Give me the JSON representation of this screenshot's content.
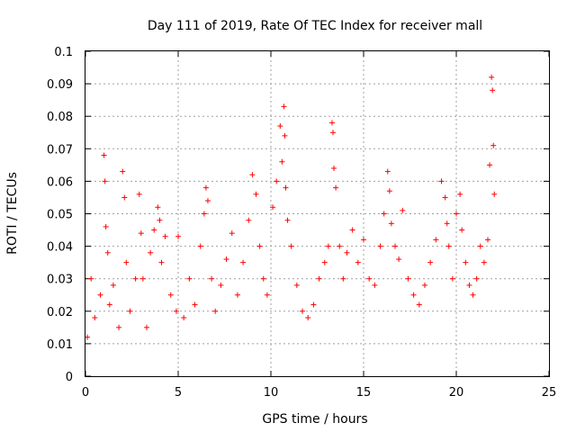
{
  "chart_data": {
    "type": "scatter",
    "title": "Day 111 of 2019, Rate Of TEC Index for receiver mall",
    "xlabel": "GPS time / hours",
    "ylabel": "ROTI / TECUs",
    "xlim": [
      0,
      25
    ],
    "ylim": [
      0,
      0.1
    ],
    "xticks": [
      "0",
      "5",
      "10",
      "15",
      "20",
      "25"
    ],
    "yticks": [
      "0",
      "0.01",
      "0.02",
      "0.03",
      "0.04",
      "0.05",
      "0.06",
      "0.07",
      "0.08",
      "0.09",
      "0.1"
    ],
    "grid": true,
    "legend": "none",
    "marker": "+",
    "color": "#ff0000",
    "series": [
      {
        "x": [
          0.1,
          0.3,
          0.5,
          0.8,
          1.0,
          1.05,
          1.1,
          1.2,
          1.3,
          1.5,
          1.8,
          2.0,
          2.1,
          2.2,
          2.4,
          2.7,
          2.9,
          3.0,
          3.1,
          3.3,
          3.5,
          3.7,
          3.9,
          4.0,
          4.1,
          4.3,
          4.6,
          4.9,
          5.0,
          5.3,
          5.6,
          5.9,
          6.2,
          6.4,
          6.5,
          6.6,
          6.8,
          7.0,
          7.3,
          7.6,
          7.9,
          8.2,
          8.5,
          8.8,
          9.0,
          9.2,
          9.4,
          9.6,
          9.8,
          10.1,
          10.3,
          10.5,
          10.6,
          10.7,
          10.75,
          10.8,
          10.9,
          11.1,
          11.4,
          11.7,
          12.0,
          12.3,
          12.6,
          12.9,
          13.1,
          13.3,
          13.35,
          13.4,
          13.5,
          13.7,
          13.9,
          14.1,
          14.4,
          14.7,
          15.0,
          15.3,
          15.6,
          15.9,
          16.1,
          16.3,
          16.4,
          16.5,
          16.7,
          16.9,
          17.1,
          17.4,
          17.7,
          18.0,
          18.3,
          18.6,
          18.9,
          19.2,
          19.4,
          19.5,
          19.6,
          19.8,
          20.0,
          20.2,
          20.3,
          20.5,
          20.7,
          20.9,
          21.1,
          21.3,
          21.5,
          21.7,
          21.8,
          21.9,
          21.95,
          22.0,
          22.05
        ],
        "y": [
          0.012,
          0.03,
          0.018,
          0.025,
          0.068,
          0.06,
          0.046,
          0.038,
          0.022,
          0.028,
          0.015,
          0.063,
          0.055,
          0.035,
          0.02,
          0.03,
          0.056,
          0.044,
          0.03,
          0.015,
          0.038,
          0.045,
          0.052,
          0.048,
          0.035,
          0.043,
          0.025,
          0.02,
          0.043,
          0.018,
          0.03,
          0.022,
          0.04,
          0.05,
          0.058,
          0.054,
          0.03,
          0.02,
          0.028,
          0.036,
          0.044,
          0.025,
          0.035,
          0.048,
          0.062,
          0.056,
          0.04,
          0.03,
          0.025,
          0.052,
          0.06,
          0.077,
          0.066,
          0.083,
          0.074,
          0.058,
          0.048,
          0.04,
          0.028,
          0.02,
          0.018,
          0.022,
          0.03,
          0.035,
          0.04,
          0.078,
          0.075,
          0.064,
          0.058,
          0.04,
          0.03,
          0.038,
          0.045,
          0.035,
          0.042,
          0.03,
          0.028,
          0.04,
          0.05,
          0.063,
          0.057,
          0.047,
          0.04,
          0.036,
          0.051,
          0.03,
          0.025,
          0.022,
          0.028,
          0.035,
          0.042,
          0.06,
          0.055,
          0.047,
          0.04,
          0.03,
          0.05,
          0.056,
          0.045,
          0.035,
          0.028,
          0.025,
          0.03,
          0.04,
          0.035,
          0.042,
          0.065,
          0.092,
          0.088,
          0.071,
          0.056
        ]
      }
    ]
  }
}
